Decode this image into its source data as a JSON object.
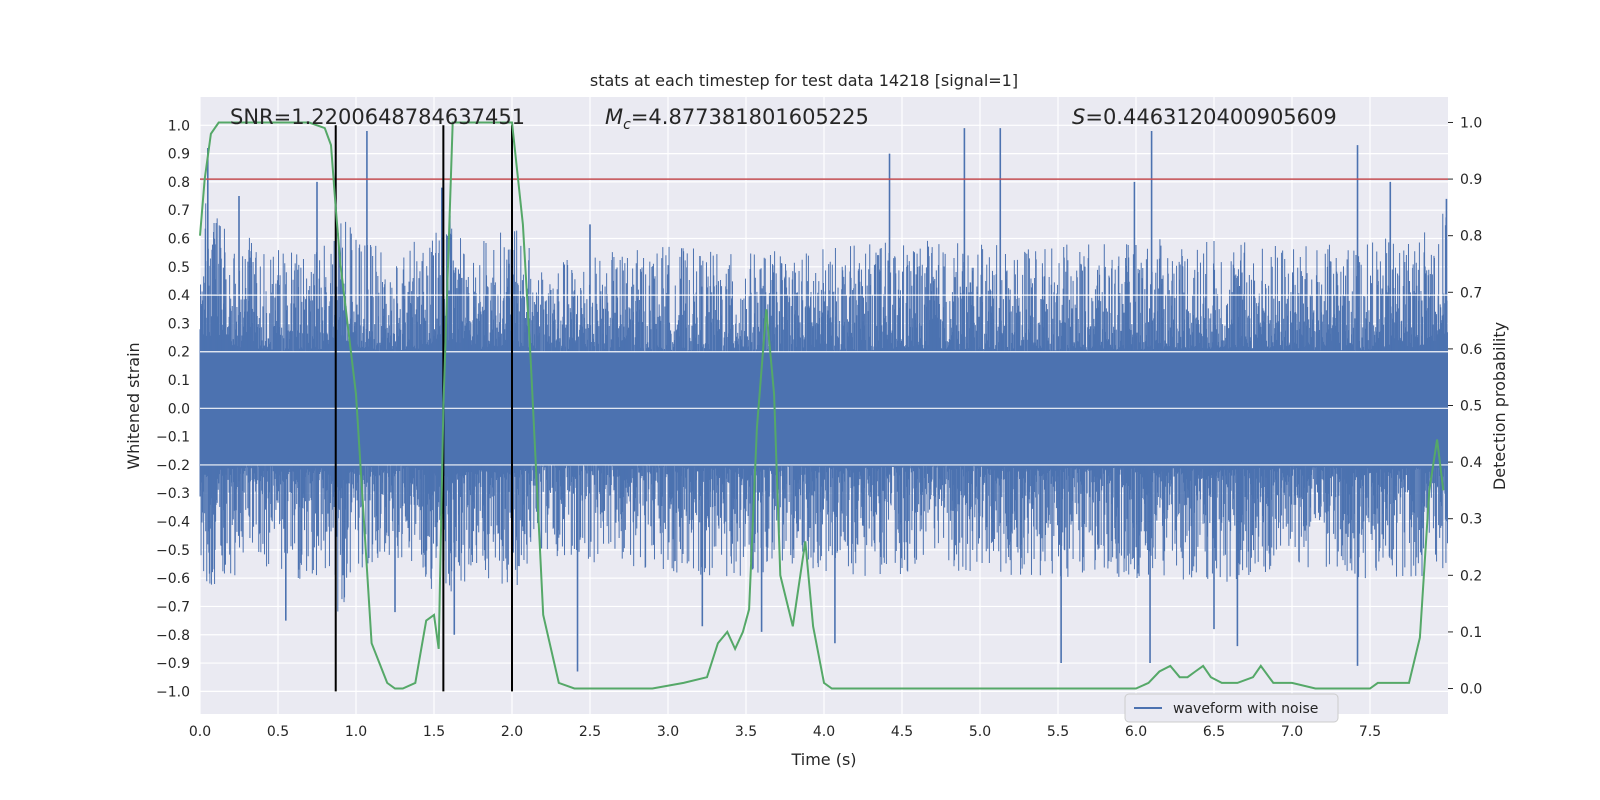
{
  "chart_data": {
    "type": "line",
    "title": "stats at each timestep for test data 14218 [signal=1]",
    "xlabel": "Time (s)",
    "ylabel": "Whitened strain",
    "ylabel_right": "Detection probability",
    "xlim": [
      0.0,
      8.0
    ],
    "ylim": [
      -1.08,
      1.1
    ],
    "ylim_right": [
      -0.045,
      1.045
    ],
    "x_ticks": [
      0.0,
      0.5,
      1.0,
      1.5,
      2.0,
      2.5,
      3.0,
      3.5,
      4.0,
      4.5,
      5.0,
      5.5,
      6.0,
      6.5,
      7.0,
      7.5
    ],
    "x_tick_labels": [
      "0.0",
      "0.5",
      "1.0",
      "1.5",
      "2.0",
      "2.5",
      "3.0",
      "3.5",
      "4.0",
      "4.5",
      "5.0",
      "5.5",
      "6.0",
      "6.5",
      "7.0",
      "7.5"
    ],
    "y_ticks": [
      -1.0,
      -0.9,
      -0.8,
      -0.7,
      -0.6,
      -0.5,
      -0.4,
      -0.3,
      -0.2,
      -0.1,
      0.0,
      0.1,
      0.2,
      0.3,
      0.4,
      0.5,
      0.6,
      0.7,
      0.8,
      0.9,
      1.0
    ],
    "y_tick_labels": [
      "−1.0",
      "−0.9",
      "−0.8",
      "−0.7",
      "−0.6",
      "−0.5",
      "−0.4",
      "−0.3",
      "−0.2",
      "−0.1",
      "0.0",
      "0.1",
      "0.2",
      "0.3",
      "0.4",
      "0.5",
      "0.6",
      "0.7",
      "0.8",
      "0.9",
      "1.0"
    ],
    "y_right_ticks": [
      0.0,
      0.1,
      0.2,
      0.3,
      0.4,
      0.5,
      0.6,
      0.7,
      0.8,
      0.9,
      1.0
    ],
    "y_right_tick_labels": [
      "0.0",
      "0.1",
      "0.2",
      "0.3",
      "0.4",
      "0.5",
      "0.6",
      "0.7",
      "0.8",
      "0.9",
      "1.0"
    ],
    "grid": true,
    "legend": {
      "entries": [
        "waveform with noise"
      ],
      "placement": "lower-right"
    },
    "annotations": {
      "snr": "SNR=1.2200648784637451",
      "mc_symbol": "M",
      "mc_sub": "c",
      "mc_value": "=4.877381801605225",
      "s_symbol": "S",
      "s_value": "=0.4463120400905609"
    },
    "threshold": {
      "y_right": 0.9,
      "color": "#c44e52"
    },
    "vertical_lines": [
      0.87,
      1.56,
      2.0
    ],
    "series": [
      {
        "name": "waveform with noise",
        "axis": "left",
        "color": "#4c72b0",
        "envelope": {
          "t": [
            0.0,
            0.2,
            0.4,
            0.6,
            0.8,
            0.87,
            1.0,
            1.2,
            1.4,
            1.56,
            1.8,
            2.0,
            2.2,
            2.6,
            3.0,
            3.4,
            3.8,
            4.2,
            4.6,
            5.0,
            5.4,
            5.8,
            6.2,
            6.6,
            7.0,
            7.4,
            7.8,
            8.0
          ],
          "max": [
            0.75,
            0.62,
            0.6,
            0.55,
            0.6,
            0.72,
            0.62,
            0.55,
            0.6,
            0.7,
            0.6,
            0.65,
            0.52,
            0.55,
            0.58,
            0.55,
            0.56,
            0.58,
            0.6,
            0.58,
            0.58,
            0.58,
            0.6,
            0.6,
            0.58,
            0.58,
            0.62,
            0.72
          ],
          "min": [
            -0.65,
            -0.6,
            -0.55,
            -0.62,
            -0.6,
            -0.75,
            -0.6,
            -0.55,
            -0.6,
            -0.68,
            -0.62,
            -0.65,
            -0.52,
            -0.55,
            -0.58,
            -0.6,
            -0.58,
            -0.6,
            -0.58,
            -0.58,
            -0.6,
            -0.6,
            -0.6,
            -0.62,
            -0.58,
            -0.6,
            -0.6,
            -0.6
          ]
        },
        "spikes": [
          {
            "x": 0.05,
            "y": 0.92
          },
          {
            "x": 0.25,
            "y": 0.75
          },
          {
            "x": 0.55,
            "y": -0.75
          },
          {
            "x": 0.75,
            "y": 0.8
          },
          {
            "x": 1.07,
            "y": 0.98
          },
          {
            "x": 1.25,
            "y": -0.72
          },
          {
            "x": 1.55,
            "y": 0.78
          },
          {
            "x": 1.63,
            "y": -0.8
          },
          {
            "x": 2.42,
            "y": -0.93
          },
          {
            "x": 2.5,
            "y": 0.65
          },
          {
            "x": 3.22,
            "y": -0.77
          },
          {
            "x": 3.6,
            "y": -0.79
          },
          {
            "x": 4.07,
            "y": -0.83
          },
          {
            "x": 4.42,
            "y": 0.9
          },
          {
            "x": 4.9,
            "y": 0.99
          },
          {
            "x": 5.13,
            "y": 0.99
          },
          {
            "x": 5.52,
            "y": -0.9
          },
          {
            "x": 5.99,
            "y": 0.8
          },
          {
            "x": 6.09,
            "y": -0.9
          },
          {
            "x": 6.1,
            "y": 0.98
          },
          {
            "x": 6.5,
            "y": -0.78
          },
          {
            "x": 6.65,
            "y": -0.84
          },
          {
            "x": 7.42,
            "y": 0.93
          },
          {
            "x": 7.42,
            "y": -0.91
          },
          {
            "x": 7.63,
            "y": 0.8
          },
          {
            "x": 7.99,
            "y": 0.74
          }
        ]
      },
      {
        "name": "",
        "axis": "right",
        "color": "#55a868",
        "x": [
          0.0,
          0.03,
          0.07,
          0.12,
          0.2,
          0.4,
          0.6,
          0.7,
          0.8,
          0.84,
          0.87,
          0.9,
          1.0,
          1.1,
          1.2,
          1.25,
          1.3,
          1.38,
          1.45,
          1.5,
          1.53,
          1.56,
          1.62,
          1.7,
          1.8,
          1.9,
          2.0,
          2.07,
          2.12,
          2.2,
          2.3,
          2.4,
          2.6,
          2.9,
          3.1,
          3.25,
          3.32,
          3.38,
          3.43,
          3.48,
          3.52,
          3.57,
          3.63,
          3.68,
          3.72,
          3.8,
          3.88,
          3.93,
          4.0,
          4.05,
          4.2,
          4.5,
          4.8,
          5.0,
          5.2,
          5.5,
          5.8,
          6.0,
          6.08,
          6.15,
          6.22,
          6.28,
          6.33,
          6.38,
          6.43,
          6.48,
          6.55,
          6.65,
          6.75,
          6.8,
          6.88,
          7.0,
          7.15,
          7.3,
          7.5,
          7.55,
          7.6,
          7.68,
          7.75,
          7.82,
          7.88,
          7.93,
          7.97
        ],
        "y": [
          0.8,
          0.9,
          0.98,
          1.0,
          1.0,
          1.0,
          1.0,
          1.0,
          0.99,
          0.96,
          0.85,
          0.75,
          0.52,
          0.08,
          0.01,
          0.0,
          0.0,
          0.01,
          0.12,
          0.13,
          0.07,
          0.5,
          1.0,
          1.0,
          1.0,
          1.0,
          1.0,
          0.82,
          0.58,
          0.13,
          0.01,
          0.0,
          0.0,
          0.0,
          0.01,
          0.02,
          0.08,
          0.1,
          0.07,
          0.1,
          0.14,
          0.46,
          0.67,
          0.52,
          0.2,
          0.11,
          0.26,
          0.11,
          0.01,
          0.0,
          0.0,
          0.0,
          0.0,
          0.0,
          0.0,
          0.0,
          0.0,
          0.0,
          0.01,
          0.03,
          0.04,
          0.02,
          0.02,
          0.03,
          0.04,
          0.02,
          0.01,
          0.01,
          0.02,
          0.04,
          0.01,
          0.01,
          0.0,
          0.0,
          0.0,
          0.01,
          0.01,
          0.01,
          0.01,
          0.09,
          0.35,
          0.44,
          0.35
        ]
      }
    ]
  }
}
